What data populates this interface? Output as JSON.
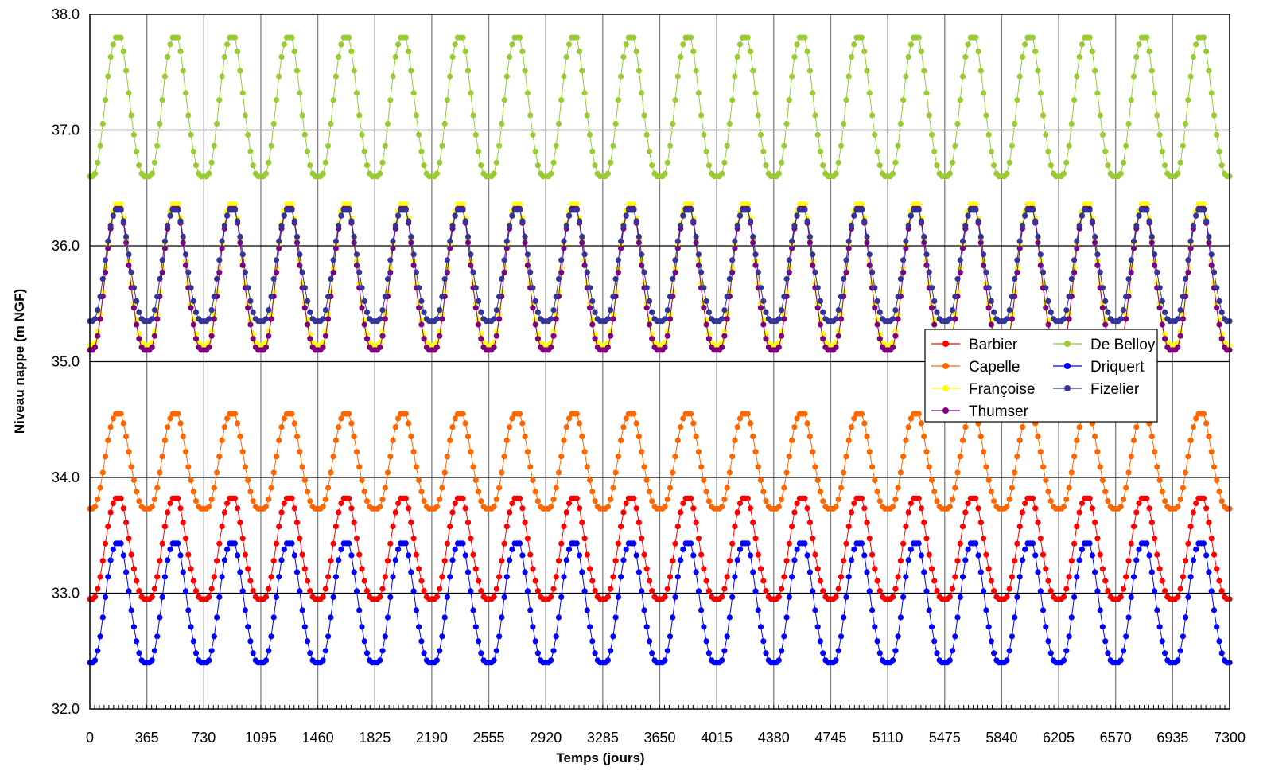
{
  "chart_data": {
    "type": "line",
    "title": "",
    "xlabel": "Temps (jours)",
    "ylabel": "Niveau nappe (m NGF)",
    "xlim": [
      0,
      7300
    ],
    "ylim": [
      32.0,
      38.0
    ],
    "x_ticks": [
      0,
      365,
      730,
      1095,
      1460,
      1825,
      2190,
      2555,
      2920,
      3285,
      3650,
      4015,
      4380,
      4745,
      5110,
      5475,
      5840,
      6205,
      6570,
      6935,
      7300
    ],
    "y_ticks": [
      "32.0",
      "33.0",
      "34.0",
      "35.0",
      "36.0",
      "37.0",
      "38.0"
    ],
    "grid": true,
    "legend_position": "right",
    "cycle_period_days": 365,
    "series": [
      {
        "name": "Barbier",
        "color": "#ff0000",
        "min": 32.95,
        "max": 33.82
      },
      {
        "name": "Capelle",
        "color": "#ff6600",
        "min": 33.73,
        "max": 34.55
      },
      {
        "name": "Françoise",
        "color": "#ffff00",
        "min": 35.14,
        "max": 36.36
      },
      {
        "name": "Thumser",
        "color": "#800080",
        "min": 35.1,
        "max": 36.32
      },
      {
        "name": "De Belloy",
        "color": "#99cc33",
        "min": 36.6,
        "max": 37.8
      },
      {
        "name": "Driquert",
        "color": "#0000ff",
        "min": 32.4,
        "max": 33.43
      },
      {
        "name": "Fizelier",
        "color": "#333399",
        "min": 35.35,
        "max": 36.31
      }
    ]
  }
}
